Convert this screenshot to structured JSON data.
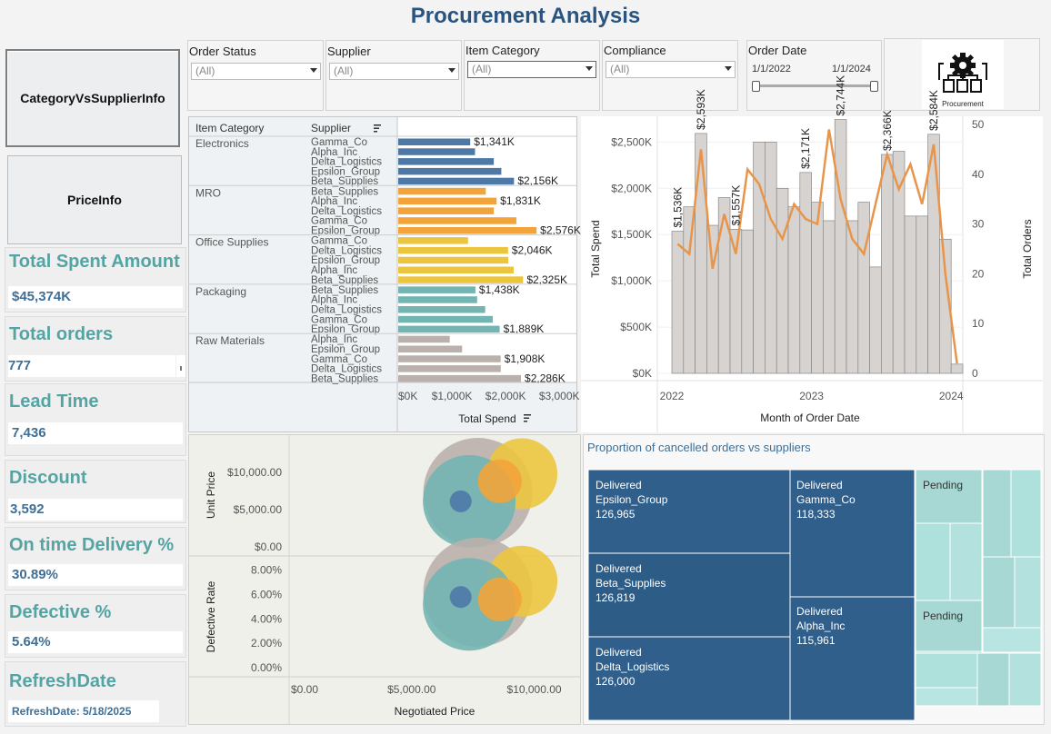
{
  "title": "Procurement Analysis",
  "nav": {
    "category_vs_supplier": "CategoryVsSupplierInfo",
    "price_info": "PriceInfo"
  },
  "kpis": {
    "total_spent": {
      "label": "Total Spent Amount",
      "value": "$45,374K"
    },
    "total_orders": {
      "label": "Total orders",
      "value": "777"
    },
    "lead_time": {
      "label": "Lead Time",
      "value": "7,436"
    },
    "discount": {
      "label": "Discount",
      "value": "3,592"
    },
    "on_time": {
      "label": "On time Delivery %",
      "value": "30.89%"
    },
    "defective": {
      "label": "Defective %",
      "value": "5.64%"
    },
    "refresh": {
      "label": "RefreshDate",
      "value": "RefreshDate: 5/18/2025"
    }
  },
  "filters": {
    "order_status": {
      "label": "Order Status",
      "value": "(All)"
    },
    "supplier": {
      "label": "Supplier",
      "value": "(All)"
    },
    "item_category": {
      "label": "Item Category",
      "value": "(All)"
    },
    "compliance": {
      "label": "Compliance",
      "value": "(All)"
    },
    "order_date": {
      "label": "Order Date",
      "start": "1/1/2022",
      "end": "1/1/2024"
    }
  },
  "procurement_tile": {
    "label": "Procurement",
    "icon": "procurement-gear-icon"
  },
  "colors": {
    "title": "#2a5480",
    "kpi_label": "#53a4a3",
    "kpi_value": "#3f6f96",
    "electronics": "#4e79a7",
    "mro": "#f2a43a",
    "office": "#ecc53f",
    "packaging": "#73b5b2",
    "raw": "#bab0ac",
    "line": "#e8954a",
    "treemap_dark": "#2f5f8a",
    "treemap_light": "#a7d8d4"
  },
  "chart_data": [
    {
      "type": "bar",
      "orientation": "horizontal",
      "headers": {
        "category": "Item Category",
        "supplier": "Supplier"
      },
      "xlabel": "Total Spend",
      "xticks": [
        "$0K",
        "$1,000K",
        "$2,000K",
        "$3,000K"
      ],
      "xlim": [
        0,
        3200
      ],
      "unit": "K",
      "groups": [
        {
          "category": "Electronics",
          "rows": [
            {
              "supplier": "Gamma_Co",
              "value": 1341,
              "label": "$1,341K"
            },
            {
              "supplier": "Alpha_Inc",
              "value": 1430
            },
            {
              "supplier": "Delta_Logistics",
              "value": 1780
            },
            {
              "supplier": "Epsilon_Group",
              "value": 1920
            },
            {
              "supplier": "Beta_Supplies",
              "value": 2156,
              "label": "$2,156K"
            }
          ]
        },
        {
          "category": "MRO",
          "rows": [
            {
              "supplier": "Beta_Supplies",
              "value": 1630
            },
            {
              "supplier": "Alpha_Inc",
              "value": 1831,
              "label": "$1,831K"
            },
            {
              "supplier": "Delta_Logistics",
              "value": 1780
            },
            {
              "supplier": "Gamma_Co",
              "value": 2200
            },
            {
              "supplier": "Epsilon_Group",
              "value": 2576,
              "label": "$2,576K"
            }
          ]
        },
        {
          "category": "Office Supplies",
          "rows": [
            {
              "supplier": "Gamma_Co",
              "value": 1300
            },
            {
              "supplier": "Delta_Logistics",
              "value": 2046,
              "label": "$2,046K"
            },
            {
              "supplier": "Epsilon_Group",
              "value": 2050
            },
            {
              "supplier": "Alpha_Inc",
              "value": 2150
            },
            {
              "supplier": "Beta_Supplies",
              "value": 2325,
              "label": "$2,325K"
            }
          ]
        },
        {
          "category": "Packaging",
          "rows": [
            {
              "supplier": "Beta_Supplies",
              "value": 1438,
              "label": "$1,438K"
            },
            {
              "supplier": "Alpha_Inc",
              "value": 1470
            },
            {
              "supplier": "Delta_Logistics",
              "value": 1620
            },
            {
              "supplier": "Gamma_Co",
              "value": 1760
            },
            {
              "supplier": "Epsilon_Group",
              "value": 1889,
              "label": "$1,889K"
            }
          ]
        },
        {
          "category": "Raw Materials",
          "rows": [
            {
              "supplier": "Alpha_Inc",
              "value": 960
            },
            {
              "supplier": "Epsilon_Group",
              "value": 1190
            },
            {
              "supplier": "Gamma_Co",
              "value": 1908,
              "label": "$1,908K"
            },
            {
              "supplier": "Delta_Logistics",
              "value": 1910
            },
            {
              "supplier": "Beta_Supplies",
              "value": 2286,
              "label": "$2,286K"
            }
          ]
        }
      ]
    },
    {
      "type": "bar+line",
      "xlabel": "Month of Order Date",
      "ylabel_left": "Total Spend",
      "ylabel_right": "Total Orders",
      "yticks_left": [
        "$0K",
        "$500K",
        "$1,000K",
        "$1,500K",
        "$2,000K",
        "$2,500K"
      ],
      "ylim_left": [
        0,
        2700
      ],
      "yticks_right": [
        "0",
        "10",
        "20",
        "30",
        "40",
        "50"
      ],
      "ylim_right": [
        0,
        50
      ],
      "xticks": [
        "2022",
        "2023",
        "2024"
      ],
      "months": 25,
      "spend": [
        1536,
        1800,
        2593,
        1600,
        1900,
        1557,
        1550,
        2500,
        2500,
        2000,
        1800,
        2171,
        1850,
        1650,
        2744,
        1650,
        1850,
        1150,
        2366,
        2400,
        1700,
        1700,
        2584,
        1450,
        100
      ],
      "orders": [
        26,
        24,
        45,
        21,
        32,
        24,
        41,
        38,
        31,
        27,
        34,
        31,
        30,
        49,
        35,
        27,
        24,
        34,
        44,
        37,
        42,
        34,
        46,
        20,
        2
      ],
      "data_labels": [
        {
          "index": 0,
          "text": "$1,536K"
        },
        {
          "index": 2,
          "text": "$2,593K"
        },
        {
          "index": 5,
          "text": "$1,557K"
        },
        {
          "index": 11,
          "text": "$2,171K"
        },
        {
          "index": 14,
          "text": "$2,744K"
        },
        {
          "index": 18,
          "text": "$2,366K"
        },
        {
          "index": 22,
          "text": "$2,584K"
        }
      ]
    },
    {
      "type": "scatter",
      "xlabel": "Negotiated Price",
      "xticks": [
        "$0.00",
        "$5,000.00",
        "$10,000.00"
      ],
      "xlim": [
        0,
        11500
      ],
      "panels": [
        {
          "ylabel": "Unit Price",
          "yticks": [
            "$0.00",
            "$5,000.00",
            "$10,000.00"
          ],
          "ylim": [
            0,
            14000
          ],
          "points": [
            {
              "x": 7700,
              "y": 7300,
              "size": 1,
              "color": "#bab0ac"
            },
            {
              "x": 9500,
              "y": 9800,
              "size": 0.65,
              "color": "#ecc53f"
            },
            {
              "x": 7350,
              "y": 6100,
              "size": 0.85,
              "color": "#73b5b2"
            },
            {
              "x": 8600,
              "y": 8800,
              "size": 0.4,
              "color": "#f2a43a"
            },
            {
              "x": 7000,
              "y": 6100,
              "size": 0.2,
              "color": "#4e79a7"
            }
          ]
        },
        {
          "ylabel": "Defective Rate",
          "yticks": [
            "0.00%",
            "2.00%",
            "4.00%",
            "6.00%",
            "8.00%"
          ],
          "ylim": [
            0,
            8.5
          ],
          "points": [
            {
              "x": 7700,
              "y": 6.2,
              "size": 1,
              "color": "#bab0ac"
            },
            {
              "x": 9500,
              "y": 7.1,
              "size": 0.65,
              "color": "#ecc53f"
            },
            {
              "x": 7350,
              "y": 5.2,
              "size": 0.85,
              "color": "#73b5b2"
            },
            {
              "x": 8600,
              "y": 5.6,
              "size": 0.4,
              "color": "#f2a43a"
            },
            {
              "x": 7000,
              "y": 5.8,
              "size": 0.2,
              "color": "#4e79a7"
            }
          ]
        }
      ]
    },
    {
      "type": "treemap",
      "title": "Proportion of cancelled orders vs suppliers",
      "cells": [
        {
          "status": "Delivered",
          "supplier": "Epsilon_Group",
          "value": "126,965"
        },
        {
          "status": "Delivered",
          "supplier": "Beta_Supplies",
          "value": "126,819"
        },
        {
          "status": "Delivered",
          "supplier": "Delta_Logistics",
          "value": "126,000"
        },
        {
          "status": "Delivered",
          "supplier": "Gamma_Co",
          "value": "118,333"
        },
        {
          "status": "Delivered",
          "supplier": "Alpha_Inc",
          "value": "115,961"
        },
        {
          "status": "Pending"
        },
        {
          "status": "Pending"
        }
      ]
    }
  ]
}
